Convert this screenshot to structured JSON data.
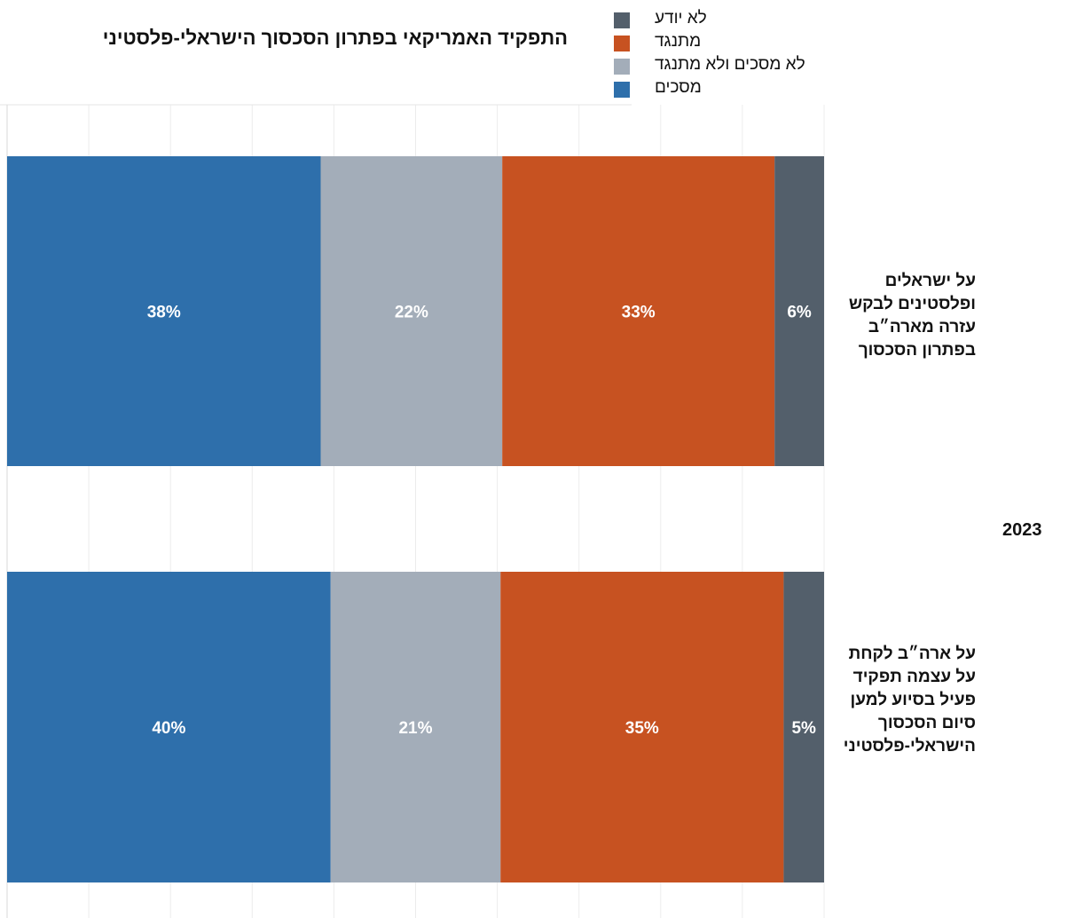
{
  "chart_data": {
    "type": "bar",
    "orientation": "horizontal",
    "stacked": true,
    "title": "התפקיד האמריקאי בפתרון הסכסוך הישראלי-פלסטיני",
    "group_label": "2023",
    "categories": [
      "על ישראלים ופלסטינים לבקש עזרה מארה״ב בפתרון הסכסוך",
      "על ארה״ב לקחת על עצמה תפקיד פעיל בסיוע למען סיום הסכסוך הישראלי-פלסטיני"
    ],
    "series": [
      {
        "name": "מסכים",
        "color": "#2e6fab",
        "values": [
          38,
          40
        ],
        "labels": [
          "38%",
          "40%"
        ]
      },
      {
        "name": "לא מסכים ולא מתנגד",
        "color": "#a3adb9",
        "values": [
          22,
          21
        ],
        "labels": [
          "22%",
          "21%"
        ]
      },
      {
        "name": "מתנגד",
        "color": "#c75221",
        "values": [
          33,
          35
        ],
        "labels": [
          "33%",
          "35%"
        ]
      },
      {
        "name": "לא יודע",
        "color": "#535f6b",
        "values": [
          6,
          5
        ],
        "labels": [
          "6%",
          "5%"
        ]
      }
    ],
    "legend_order": [
      3,
      2,
      1,
      0
    ],
    "legend_position": "top-right",
    "xlim": [
      0,
      100
    ],
    "grid": true
  }
}
